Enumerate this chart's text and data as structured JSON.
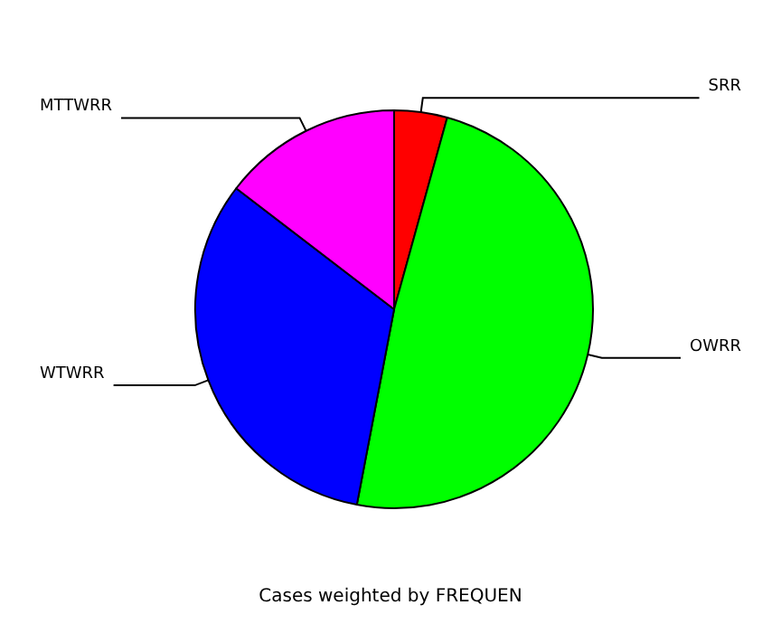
{
  "chart_data": {
    "type": "pie",
    "categories": [
      "SRR",
      "OWRR",
      "WTWRR",
      "MTTWRR"
    ],
    "values": [
      4.3,
      48.7,
      32.4,
      14.6
    ],
    "colors": [
      "#ff0000",
      "#00ff00",
      "#0000ff",
      "#ff00ff"
    ],
    "annotations": [
      "Cases weighted by FREQUEN"
    ],
    "legend": false
  }
}
